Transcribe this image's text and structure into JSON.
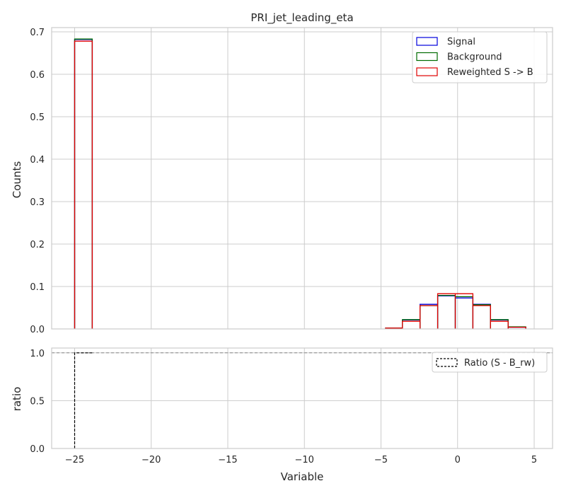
{
  "chart_data": [
    {
      "type": "line",
      "drawstyle": "step-histogram",
      "title": "PRI_jet_leading_eta",
      "xlabel": "",
      "ylabel": "Counts",
      "xlim": [
        -26.5,
        6.2
      ],
      "ylim": [
        0,
        0.71
      ],
      "xticks": [
        -25,
        -20,
        -15,
        -10,
        -5,
        0,
        5
      ],
      "xtick_labels": [
        "−25",
        "−20",
        "−15",
        "−10",
        "−5",
        "0",
        "5"
      ],
      "yticks": [
        0.0,
        0.1,
        0.2,
        0.3,
        0.4,
        0.5,
        0.6,
        0.7
      ],
      "ytick_labels": [
        "0.0",
        "0.1",
        "0.2",
        "0.3",
        "0.4",
        "0.5",
        "0.6",
        "0.7"
      ],
      "grid": true,
      "legend_position": "top-right",
      "bin_edges": [
        -25.0,
        -23.85,
        -4.7,
        -3.6,
        -2.45,
        -1.3,
        -0.15,
        1.0,
        2.15,
        3.3,
        4.45
      ],
      "series": [
        {
          "name": "Signal",
          "color": "#0000dd",
          "values": [
            0.682,
            0,
            0.002,
            0.021,
            0.058,
            0.078,
            0.073,
            0.058,
            0.021,
            0.004
          ]
        },
        {
          "name": "Background",
          "color": "#006b00",
          "values": [
            0.683,
            0,
            0.002,
            0.022,
            0.055,
            0.079,
            0.076,
            0.057,
            0.022,
            0.005
          ]
        },
        {
          "name": "Reweighted S -> B",
          "color": "#e00000",
          "values": [
            0.678,
            0,
            0.002,
            0.018,
            0.055,
            0.083,
            0.083,
            0.055,
            0.018,
            0.004
          ]
        }
      ]
    },
    {
      "type": "line",
      "xlabel": "Variable",
      "ylabel": "ratio",
      "xlim": [
        -26.5,
        6.2
      ],
      "ylim": [
        0,
        1.05
      ],
      "xticks": [
        -25,
        -20,
        -15,
        -10,
        -5,
        0,
        5
      ],
      "xtick_labels": [
        "−25",
        "−20",
        "−15",
        "−10",
        "−5",
        "0",
        "5"
      ],
      "yticks": [
        0.0,
        0.5,
        1.0
      ],
      "ytick_labels": [
        "0.0",
        "0.5",
        "1.0"
      ],
      "grid": true,
      "legend_position": "top-right",
      "reference_line": {
        "y": 1.0,
        "color": "#888888",
        "style": "dashed"
      },
      "series": [
        {
          "name": "Ratio (S - B_rw)",
          "color": "#000000",
          "style": "dashed",
          "x": [
            -25.0,
            -25.0,
            -23.85
          ],
          "values": [
            0.0,
            1.0,
            1.0
          ]
        }
      ]
    }
  ]
}
